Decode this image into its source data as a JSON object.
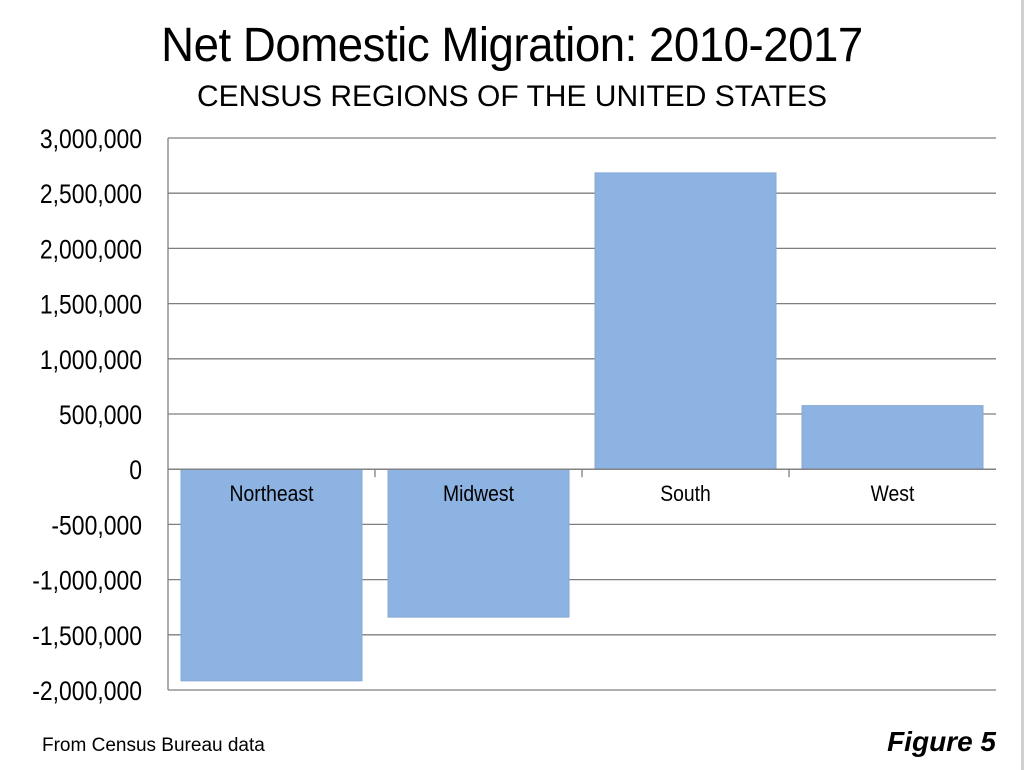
{
  "chart_data": {
    "type": "bar",
    "title": "Net Domestic Migration: 2010-2017",
    "subtitle": "CENSUS REGIONS OF THE UNITED STATES",
    "categories": [
      "Northeast",
      "Midwest",
      "South",
      "West"
    ],
    "values": [
      -1917000,
      -1340000,
      2684000,
      576000
    ],
    "xlabel": "",
    "ylabel": "",
    "ylim": [
      -2000000,
      3000000
    ],
    "yticks": [
      3000000,
      2500000,
      2000000,
      1500000,
      1000000,
      500000,
      0,
      -500000,
      -1000000,
      -1500000,
      -2000000
    ],
    "ytick_labels": [
      "3,000,000",
      "2,500,000",
      "2,000,000",
      "1,500,000",
      "1,000,000",
      "500,000",
      "0",
      "-500,000",
      "-1,000,000",
      "-1,500,000",
      "-2,000,000"
    ],
    "grid": true,
    "bar_color": "#8db3e2",
    "source_note": "From Census Bureau data",
    "figure_label": "Figure 5"
  }
}
